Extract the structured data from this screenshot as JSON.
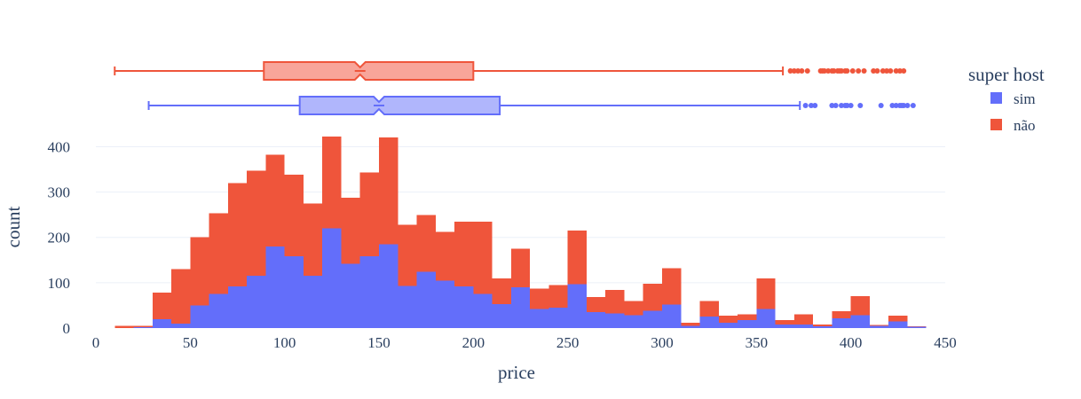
{
  "chart_data": {
    "type": "histogram",
    "xlabel": "price",
    "ylabel": "count",
    "xlim": [
      0,
      450
    ],
    "ylim": [
      0,
      440
    ],
    "x_ticks": [
      0,
      50,
      100,
      150,
      200,
      250,
      300,
      350,
      400,
      450
    ],
    "y_ticks": [
      0,
      100,
      200,
      300,
      400
    ],
    "bin_width": 10,
    "bin_start": 10,
    "barmode": "stacked",
    "legend": {
      "title": "super host",
      "position": "right"
    },
    "series": [
      {
        "name": "sim",
        "color": "#636efa",
        "counts": [
          0,
          2,
          20,
          10,
          50,
          75,
          92,
          115,
          180,
          158,
          115,
          220,
          142,
          158,
          185,
          93,
          124,
          105,
          92,
          75,
          53,
          90,
          42,
          45,
          97,
          35,
          32,
          28,
          38,
          52,
          5,
          25,
          12,
          18,
          42,
          8,
          8,
          4,
          22,
          28,
          5,
          15,
          3
        ],
        "boxplot": {
          "min": 28,
          "q1": 108,
          "median": 150,
          "q3": 214,
          "max": 373,
          "outliers": [
            376,
            379,
            381,
            390,
            392,
            395,
            397,
            398,
            400,
            405,
            416,
            422,
            424,
            426,
            427,
            428,
            430,
            433
          ]
        }
      },
      {
        "name": "não",
        "color": "#ef553b",
        "counts": [
          5,
          3,
          58,
          120,
          150,
          178,
          228,
          232,
          202,
          180,
          160,
          202,
          145,
          185,
          235,
          135,
          125,
          107,
          143,
          160,
          57,
          85,
          45,
          50,
          118,
          33,
          52,
          32,
          60,
          80,
          7,
          35,
          15,
          12,
          68,
          10,
          22,
          4,
          15,
          42,
          2,
          12,
          1
        ],
        "boxplot": {
          "min": 10,
          "q1": 89,
          "median": 140,
          "q3": 200,
          "max": 364,
          "outliers": [
            368,
            370,
            372,
            374,
            377,
            384,
            385,
            386,
            388,
            390,
            391,
            393,
            394,
            395,
            397,
            398,
            401,
            404,
            407,
            412,
            414,
            417,
            419,
            421,
            424,
            426,
            428
          ]
        }
      }
    ]
  }
}
